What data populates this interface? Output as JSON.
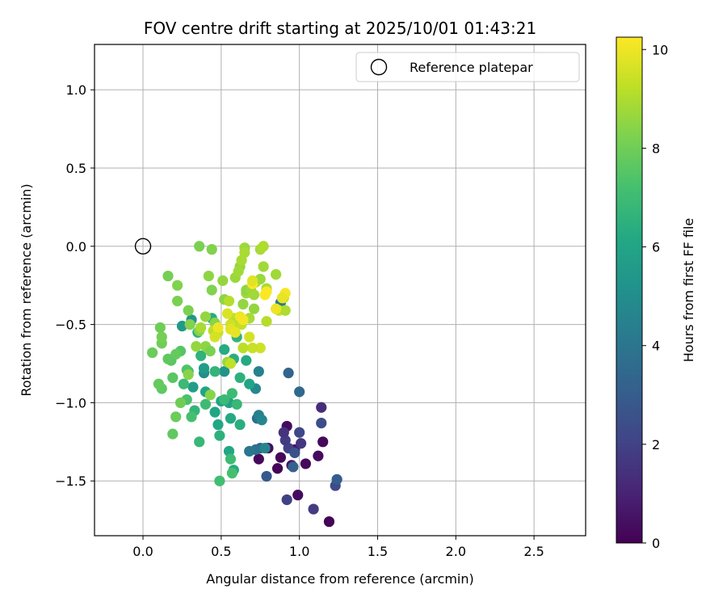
{
  "chart_data": {
    "type": "scatter",
    "title": "FOV centre drift starting at 2025/10/01 01:43:21",
    "xlabel": "Angular distance from reference (arcmin)",
    "ylabel": "Rotation from reference (arcmin)",
    "xlim": [
      -0.31,
      2.83
    ],
    "ylim": [
      -1.85,
      1.29
    ],
    "xticks": [
      0.0,
      0.5,
      1.0,
      1.5,
      2.0,
      2.5
    ],
    "xtick_labels": [
      "0.0",
      "0.5",
      "1.0",
      "1.5",
      "2.0",
      "2.5"
    ],
    "yticks": [
      -1.5,
      -1.0,
      -0.5,
      0.0,
      0.5,
      1.0
    ],
    "ytick_labels": [
      "−1.5",
      "−1.0",
      "−0.5",
      "0.0",
      "0.5",
      "1.0"
    ],
    "grid": true,
    "legend": {
      "position": "top-right",
      "label": "Reference platepar"
    },
    "reference_point": {
      "x": 0.0,
      "y": 0.0
    },
    "colorbar": {
      "label": "Hours from first FF file",
      "range": [
        0,
        10.25
      ],
      "ticks": [
        0,
        2,
        4,
        6,
        8,
        10
      ],
      "tick_labels": [
        "0",
        "2",
        "4",
        "6",
        "8",
        "10"
      ],
      "colormap": "viridis"
    },
    "points": [
      [
        1.19,
        -1.76,
        0.1
      ],
      [
        1.15,
        -1.25,
        0.2
      ],
      [
        1.12,
        -1.34,
        0.3
      ],
      [
        1.04,
        -1.39,
        0.2
      ],
      [
        0.99,
        -1.59,
        0.3
      ],
      [
        0.95,
        -1.4,
        0.4
      ],
      [
        0.92,
        -1.15,
        0.3
      ],
      [
        0.88,
        -1.35,
        0.2
      ],
      [
        0.86,
        -1.42,
        0.1
      ],
      [
        0.8,
        -1.29,
        0.3
      ],
      [
        0.74,
        -1.36,
        0.2
      ],
      [
        0.97,
        -1.3,
        0.6
      ],
      [
        1.09,
        -1.68,
        1.8
      ],
      [
        0.92,
        -1.62,
        2.0
      ],
      [
        1.23,
        -1.53,
        2.3
      ],
      [
        0.93,
        -1.29,
        2.0
      ],
      [
        0.91,
        -1.24,
        1.8
      ],
      [
        0.9,
        -1.19,
        1.5
      ],
      [
        1.01,
        -1.26,
        1.6
      ],
      [
        1.14,
        -1.03,
        1.3
      ],
      [
        1.0,
        -1.19,
        2.2
      ],
      [
        1.14,
        -1.13,
        2.4
      ],
      [
        0.97,
        -1.32,
        2.6
      ],
      [
        1.24,
        -1.49,
        3.0
      ],
      [
        0.79,
        -1.47,
        2.9
      ],
      [
        0.96,
        -1.41,
        3.2
      ],
      [
        0.93,
        -0.81,
        3.3
      ],
      [
        1.0,
        -0.93,
        3.5
      ],
      [
        0.75,
        -1.29,
        3.4
      ],
      [
        0.73,
        -1.1,
        3.6
      ],
      [
        0.72,
        -1.3,
        3.8
      ],
      [
        0.68,
        -1.31,
        4.1
      ],
      [
        0.74,
        -1.08,
        4.4
      ],
      [
        0.78,
        -1.29,
        4.6
      ],
      [
        0.76,
        -1.11,
        4.7
      ],
      [
        0.88,
        -0.36,
        4.2
      ],
      [
        0.74,
        -0.8,
        4.5
      ],
      [
        0.72,
        -0.91,
        4.8
      ],
      [
        0.39,
        -0.81,
        5.0
      ],
      [
        0.52,
        -0.8,
        5.2
      ],
      [
        0.31,
        -0.47,
        5.4
      ],
      [
        0.39,
        -0.78,
        5.6
      ],
      [
        0.25,
        -0.51,
        5.5
      ],
      [
        0.32,
        -0.9,
        5.7
      ],
      [
        0.5,
        -0.99,
        5.9
      ],
      [
        0.46,
        -1.06,
        6.0
      ],
      [
        0.55,
        -1.31,
        6.1
      ],
      [
        0.58,
        -1.43,
        6.3
      ],
      [
        0.56,
        -1.1,
        6.2
      ],
      [
        0.62,
        -1.14,
        6.4
      ],
      [
        0.49,
        -1.21,
        6.5
      ],
      [
        0.52,
        -0.66,
        6.3
      ],
      [
        0.58,
        -0.72,
        6.4
      ],
      [
        0.6,
        -0.58,
        6.6
      ],
      [
        0.62,
        -0.84,
        6.5
      ],
      [
        0.66,
        -0.73,
        6.2
      ],
      [
        0.68,
        -0.88,
        6.0
      ],
      [
        0.55,
        -1.0,
        5.8
      ],
      [
        0.48,
        -1.14,
        6.1
      ],
      [
        0.4,
        -0.93,
        6.0
      ],
      [
        0.33,
        -1.05,
        6.7
      ],
      [
        0.29,
        -0.8,
        6.8
      ],
      [
        0.26,
        -0.88,
        6.9
      ],
      [
        0.37,
        -0.7,
        6.6
      ],
      [
        0.35,
        -0.55,
        6.5
      ],
      [
        0.44,
        -0.46,
        6.3
      ],
      [
        0.46,
        -0.8,
        6.7
      ],
      [
        0.52,
        -0.98,
        6.9
      ],
      [
        0.57,
        -0.94,
        7.0
      ],
      [
        0.6,
        -1.01,
        6.8
      ],
      [
        0.49,
        -1.5,
        7.1
      ],
      [
        0.57,
        -1.45,
        7.2
      ],
      [
        0.56,
        -1.36,
        7.0
      ],
      [
        0.36,
        -1.25,
        6.8
      ],
      [
        0.4,
        -1.01,
        7.0
      ],
      [
        0.31,
        -1.09,
        7.2
      ],
      [
        0.28,
        -0.98,
        7.3
      ],
      [
        0.28,
        -0.79,
        7.4
      ],
      [
        0.24,
        -0.67,
        7.5
      ],
      [
        0.18,
        -0.73,
        7.6
      ],
      [
        0.16,
        -0.72,
        7.7
      ],
      [
        0.21,
        -0.69,
        7.8
      ],
      [
        0.19,
        -0.84,
        7.6
      ],
      [
        0.12,
        -0.91,
        7.7
      ],
      [
        0.1,
        -0.88,
        7.8
      ],
      [
        0.21,
        -1.09,
        7.9
      ],
      [
        0.19,
        -1.2,
        7.7
      ],
      [
        0.06,
        -0.68,
        7.9
      ],
      [
        0.12,
        -0.62,
        8.0
      ],
      [
        0.12,
        -0.58,
        8.1
      ],
      [
        0.11,
        -0.52,
        8.0
      ],
      [
        0.22,
        -0.35,
        8.2
      ],
      [
        0.16,
        -0.19,
        8.1
      ],
      [
        0.22,
        -0.25,
        8.3
      ],
      [
        0.29,
        -0.41,
        8.2
      ],
      [
        0.3,
        -0.5,
        8.3
      ],
      [
        0.36,
        -0.54,
        8.4
      ],
      [
        0.4,
        -0.64,
        8.5
      ],
      [
        0.43,
        -0.67,
        8.2
      ],
      [
        0.4,
        -0.45,
        8.6
      ],
      [
        0.46,
        -0.49,
        8.4
      ],
      [
        0.42,
        -0.19,
        8.5
      ],
      [
        0.44,
        -0.28,
        8.3
      ],
      [
        0.36,
        0.0,
        8.2
      ],
      [
        0.44,
        -0.02,
        8.3
      ],
      [
        0.51,
        -0.22,
        8.6
      ],
      [
        0.52,
        -0.34,
        8.5
      ],
      [
        0.59,
        -0.2,
        8.7
      ],
      [
        0.62,
        -0.13,
        8.6
      ],
      [
        0.61,
        -0.16,
        8.8
      ],
      [
        0.63,
        -0.09,
        8.9
      ],
      [
        0.65,
        -0.01,
        8.7
      ],
      [
        0.65,
        -0.04,
        8.9
      ],
      [
        0.64,
        -0.37,
        8.6
      ],
      [
        0.66,
        -0.3,
        8.8
      ],
      [
        0.66,
        -0.28,
        8.5
      ],
      [
        0.68,
        -0.46,
        8.9
      ],
      [
        0.69,
        -0.28,
        8.7
      ],
      [
        0.71,
        -0.31,
        8.8
      ],
      [
        0.71,
        -0.4,
        8.6
      ],
      [
        0.72,
        -0.23,
        9.0
      ],
      [
        0.75,
        -0.02,
        8.9
      ],
      [
        0.77,
        0.0,
        9.0
      ],
      [
        0.77,
        -0.13,
        8.8
      ],
      [
        0.75,
        -0.21,
        8.7
      ],
      [
        0.79,
        -0.27,
        8.9
      ],
      [
        0.79,
        -0.48,
        9.1
      ],
      [
        0.85,
        -0.18,
        8.8
      ],
      [
        0.87,
        -0.41,
        9.3
      ],
      [
        0.9,
        -0.33,
        9.4
      ],
      [
        0.91,
        -0.41,
        9.0
      ],
      [
        0.54,
        -0.74,
        8.7
      ],
      [
        0.55,
        -0.35,
        9.1
      ],
      [
        0.58,
        -0.46,
        9.2
      ],
      [
        0.6,
        -0.49,
        9.0
      ],
      [
        0.63,
        -0.5,
        9.3
      ],
      [
        0.56,
        -0.5,
        9.5
      ],
      [
        0.45,
        -0.54,
        9.2
      ],
      [
        0.48,
        -0.55,
        9.4
      ],
      [
        0.37,
        -0.52,
        8.9
      ],
      [
        0.34,
        -0.64,
        8.6
      ],
      [
        0.43,
        -0.95,
        8.4
      ],
      [
        0.29,
        -0.82,
        8.4
      ],
      [
        0.24,
        -1.0,
        8.0
      ],
      [
        0.56,
        -0.75,
        9.3
      ],
      [
        0.75,
        -0.65,
        9.5
      ],
      [
        0.7,
        -0.65,
        9.4
      ],
      [
        0.68,
        -0.58,
        9.6
      ],
      [
        0.64,
        -0.65,
        9.2
      ],
      [
        0.54,
        -0.43,
        9.7
      ],
      [
        0.56,
        -0.53,
        9.8
      ],
      [
        0.59,
        -0.55,
        9.9
      ],
      [
        0.62,
        -0.45,
        10.0
      ],
      [
        0.64,
        -0.47,
        10.1
      ],
      [
        0.7,
        -0.24,
        10.2
      ],
      [
        0.7,
        -0.22,
        9.8
      ],
      [
        0.78,
        -0.31,
        10.2
      ],
      [
        0.91,
        -0.3,
        10.1
      ],
      [
        0.89,
        -0.33,
        9.9
      ],
      [
        0.85,
        -0.4,
        10.0
      ],
      [
        0.79,
        -0.29,
        10.2
      ],
      [
        0.48,
        -0.52,
        10.0
      ],
      [
        0.46,
        -0.58,
        9.6
      ]
    ]
  }
}
